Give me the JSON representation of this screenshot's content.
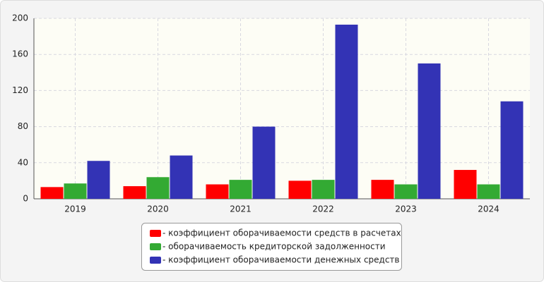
{
  "chart_data": {
    "type": "bar",
    "categories": [
      "2019",
      "2020",
      "2021",
      "2022",
      "2023",
      "2024"
    ],
    "series": [
      {
        "name": "- коэффициент оборачиваемости средств в расчетах",
        "color": "#ff0000",
        "values": [
          13,
          14,
          16,
          20,
          21,
          32
        ]
      },
      {
        "name": "- оборачиваемость кредиторской задолженности",
        "color": "#33aa33",
        "values": [
          17,
          24,
          21,
          21,
          16,
          16
        ]
      },
      {
        "name": "- коэффициент оборачиваемости денежных средств",
        "color": "#3333b5",
        "values": [
          42,
          48,
          80,
          193,
          150,
          108
        ]
      }
    ],
    "ylim": [
      0,
      200
    ],
    "yticks": [
      0,
      40,
      80,
      120,
      160,
      200
    ],
    "grid": true,
    "legend": "bottom"
  }
}
